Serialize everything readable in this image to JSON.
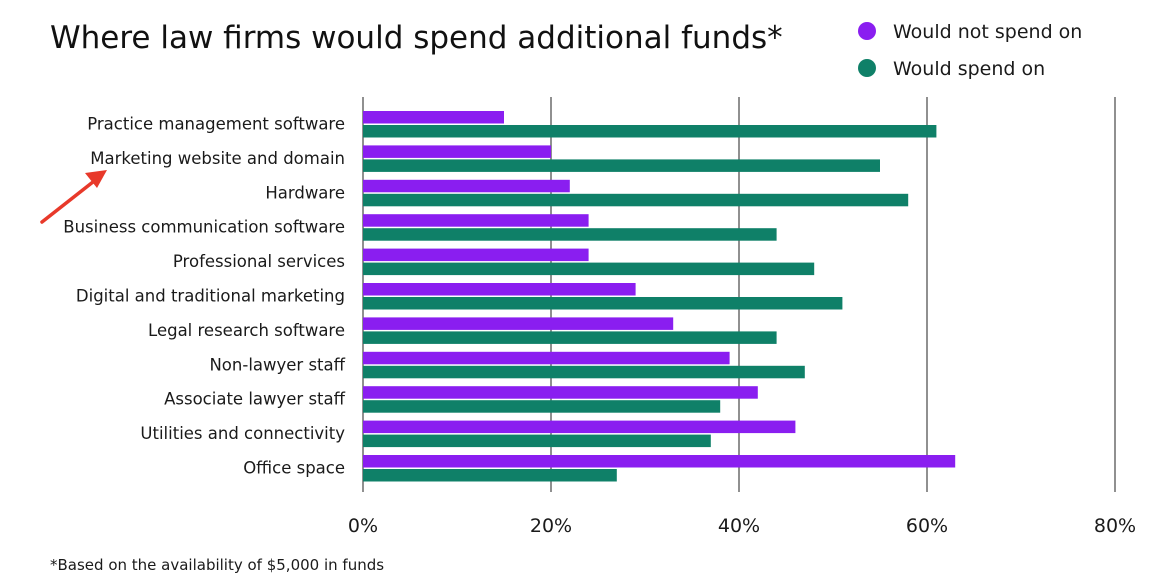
{
  "chart_data": {
    "type": "bar",
    "orientation": "horizontal",
    "title": "Where law firms would spend additional funds*",
    "footnote": "*Based on the availability of $5,000 in funds",
    "categories": [
      "Practice management software",
      "Marketing website and domain",
      "Hardware",
      "Business communication software",
      "Professional services",
      "Digital and traditional marketing",
      "Legal research software",
      "Non-lawyer staff",
      "Associate lawyer staff",
      "Utilities and connectivity",
      "Office space"
    ],
    "series": [
      {
        "name": "Would not spend on",
        "color": "#8a1ef0",
        "values": [
          15,
          20,
          22,
          24,
          24,
          29,
          33,
          39,
          42,
          46,
          63
        ]
      },
      {
        "name": "Would spend on",
        "color": "#0f8068",
        "values": [
          61,
          55,
          58,
          44,
          48,
          51,
          44,
          47,
          38,
          37,
          27
        ]
      }
    ],
    "xlim": [
      0,
      80
    ],
    "xticks": [
      "0%",
      "20%",
      "40%",
      "60%",
      "80%"
    ],
    "xlabel": "",
    "ylabel": "",
    "grid": true,
    "legend_position": "top-right",
    "annotation": {
      "type": "arrow",
      "color": "#e8392a",
      "points_to": "Marketing website and domain"
    }
  }
}
